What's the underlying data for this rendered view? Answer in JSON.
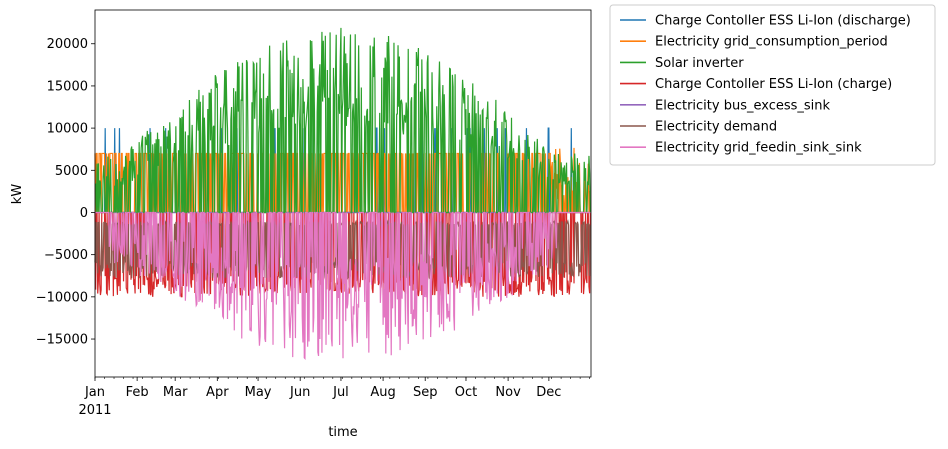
{
  "chart_data": {
    "type": "area",
    "xlabel": "time",
    "ylabel": "kW",
    "ylim": [
      -19500,
      24000
    ],
    "yticks": [
      -15000,
      -10000,
      -5000,
      0,
      5000,
      10000,
      15000,
      20000
    ],
    "ytick_labels": [
      "−15000",
      "−10000",
      "−5000",
      "0",
      "5000",
      "10000",
      "15000",
      "20000"
    ],
    "xlim": [
      "2011-01-01",
      "2011-12-31"
    ],
    "month_ticks": [
      "Jan",
      "Feb",
      "Mar",
      "Apr",
      "May",
      "Jun",
      "Jul",
      "Aug",
      "Sep",
      "Oct",
      "Nov",
      "Dec"
    ],
    "year_label": "2011",
    "legend_position": "outside-right",
    "grid": false,
    "series": [
      {
        "name": "Charge Contoller ESS Li-Ion (discharge)",
        "color": "#1f77b4",
        "sign": "positive",
        "typical_peak": 10000
      },
      {
        "name": "Electricity grid_consumption_period",
        "color": "#ff7f0e",
        "sign": "positive",
        "typical_peak": 7000,
        "max": 7700
      },
      {
        "name": "Solar inverter",
        "color": "#2ca02c",
        "sign": "positive",
        "max": 22000
      },
      {
        "name": "Charge Contoller ESS Li-Ion (charge)",
        "color": "#d62728",
        "sign": "negative",
        "min": -10000
      },
      {
        "name": "Electricity bus_excess_sink",
        "color": "#9467bd",
        "sign": "negative",
        "min": 0
      },
      {
        "name": "Electricity demand",
        "color": "#8c564b",
        "sign": "negative",
        "min": -7800,
        "max": -1300
      },
      {
        "name": "Electricity grid_feedin_sink_sink",
        "color": "#e377c2",
        "sign": "negative",
        "min": -17800
      }
    ]
  }
}
